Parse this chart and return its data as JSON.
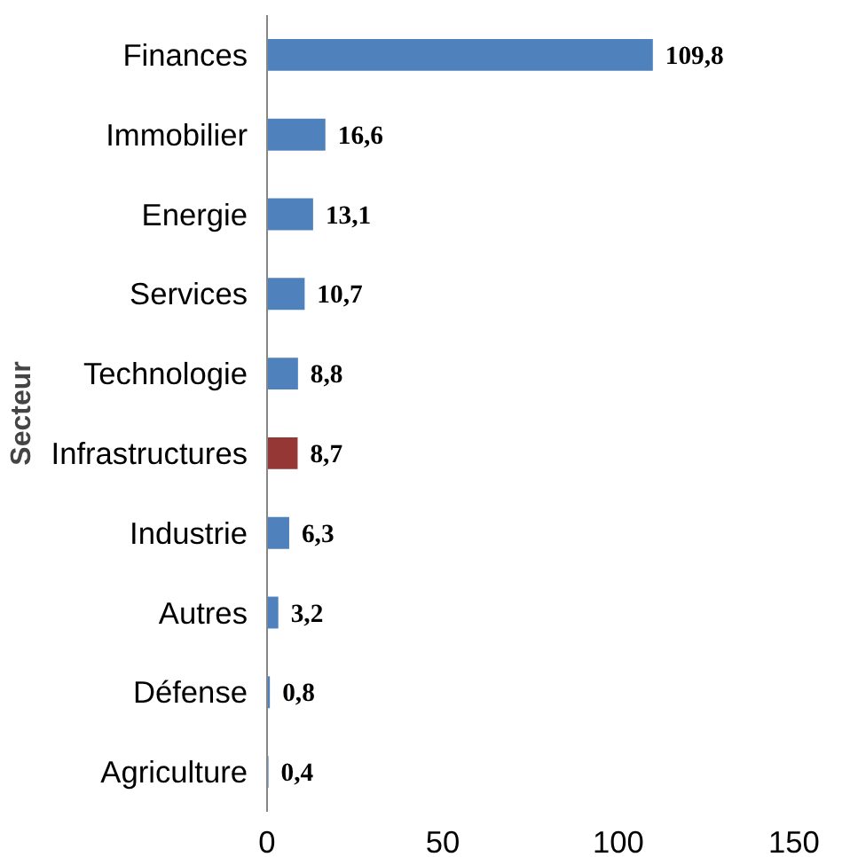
{
  "chart_data": {
    "type": "bar",
    "orientation": "horizontal",
    "ylabel": "Secteur",
    "categories": [
      "Finances",
      "Immobilier",
      "Energie",
      "Services",
      "Technologie",
      "Infrastructures",
      "Industrie",
      "Autres",
      "Défense",
      "Agriculture"
    ],
    "values": [
      109.8,
      16.6,
      13.1,
      10.7,
      8.8,
      8.7,
      6.3,
      3.2,
      0.8,
      0.4
    ],
    "value_labels": [
      "109,8",
      "16,6",
      "13,1",
      "10,7",
      "8,8",
      "8,7",
      "6,3",
      "3,2",
      "0,8",
      "0,4"
    ],
    "colors": [
      "#4f81bd",
      "#4f81bd",
      "#4f81bd",
      "#4f81bd",
      "#4f81bd",
      "#953735",
      "#4f81bd",
      "#4f81bd",
      "#4f81bd",
      "#4f81bd"
    ],
    "xlim": [
      0,
      150
    ],
    "xticks": [
      0,
      50,
      100,
      150
    ],
    "grid": false
  }
}
